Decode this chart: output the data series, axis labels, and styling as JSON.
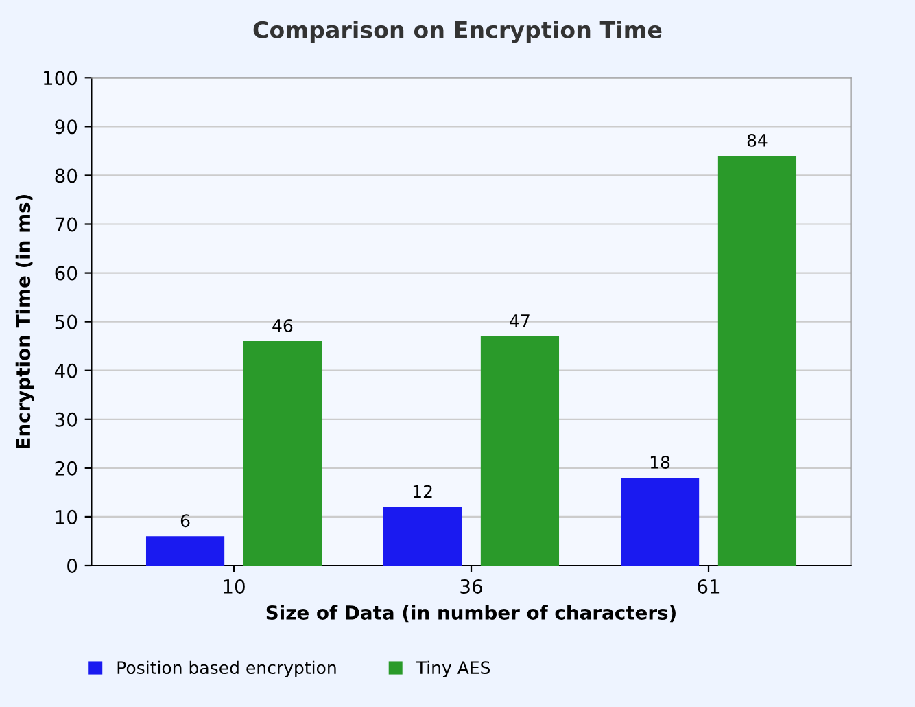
{
  "chart_data": {
    "type": "bar",
    "title": "Comparison on Encryption Time",
    "xlabel": "Size of Data (in number of characters)",
    "ylabel": "Encryption Time (in ms)",
    "categories": [
      "10",
      "36",
      "61"
    ],
    "series": [
      {
        "name": "Position based encryption",
        "color": "#1a1af0",
        "values": [
          6,
          12,
          18
        ]
      },
      {
        "name": "Tiny AES",
        "color": "#2a9a2a",
        "values": [
          46,
          47,
          84
        ]
      }
    ],
    "ylim": [
      0,
      100
    ],
    "yticks": [
      0,
      10,
      20,
      30,
      40,
      50,
      60,
      70,
      80,
      90,
      100
    ],
    "grid": "y",
    "legend": "bottom left",
    "data_labels": true
  }
}
